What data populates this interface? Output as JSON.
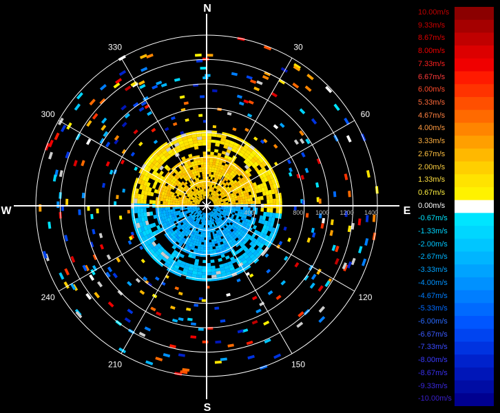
{
  "chart_data": {
    "type": "polar-heatmap",
    "cardinals": {
      "north": "N",
      "east": "E",
      "south": "S",
      "west": "W"
    },
    "azimuth_labels": [
      {
        "deg": 30,
        "text": "30"
      },
      {
        "deg": 60,
        "text": "60"
      },
      {
        "deg": 120,
        "text": "120"
      },
      {
        "deg": 150,
        "text": "150"
      },
      {
        "deg": 210,
        "text": "210"
      },
      {
        "deg": 240,
        "text": "240"
      },
      {
        "deg": 300,
        "text": "300"
      },
      {
        "deg": 330,
        "text": "330"
      }
    ],
    "range_rings": [
      200,
      400,
      600,
      800,
      1000,
      1200,
      1400
    ],
    "range_labels": [
      {
        "range": 400,
        "text": "400"
      },
      {
        "range": 800,
        "text": "800"
      },
      {
        "range": 1000,
        "text": "1000"
      },
      {
        "range": 1200,
        "text": "1200"
      },
      {
        "range": 1400,
        "text": "1400"
      }
    ],
    "max_range": 1400,
    "colorbar": {
      "labels": [
        "10.00m/s",
        "9.33m/s",
        "8.67m/s",
        "8.00m/s",
        "7.33m/s",
        "6.67m/s",
        "6.00m/s",
        "5.33m/s",
        "4.67m/s",
        "4.00m/s",
        "3.33m/s",
        "2.67m/s",
        "2.00m/s",
        "1.33m/s",
        "0.67m/s",
        "0.00m/s",
        "-0.67m/s",
        "-1.33m/s",
        "-2.00m/s",
        "-2.67m/s",
        "-3.33m/s",
        "-4.00m/s",
        "-4.67m/s",
        "-5.33m/s",
        "-6.00m/s",
        "-6.67m/s",
        "-7.33m/s",
        "-8.00m/s",
        "-8.67m/s",
        "-9.33m/s",
        "-10.00m/s"
      ],
      "colors": [
        "#8b0000",
        "#a50000",
        "#c00000",
        "#dc0000",
        "#f00000",
        "#ff1a00",
        "#ff3300",
        "#ff4f00",
        "#ff6a00",
        "#ff8500",
        "#ff9f00",
        "#ffb800",
        "#ffcf00",
        "#ffe300",
        "#fff200",
        "#ffffff",
        "#00e5ff",
        "#00d6ff",
        "#00c6ff",
        "#00b5ff",
        "#00a3ff",
        "#0091ff",
        "#007eff",
        "#006aff",
        "#0056ff",
        "#0044f0",
        "#0033e0",
        "#0022cc",
        "#0016b8",
        "#000ca4",
        "#000090"
      ],
      "label_colors": [
        "#c00000",
        "#d00000",
        "#e00000",
        "#f00000",
        "#ff2020",
        "#ff3a3a",
        "#ff4a2a",
        "#ff6a3a",
        "#ff8040",
        "#ff9a40",
        "#ffb040",
        "#ffc040",
        "#ffd040",
        "#ffe040",
        "#fff040",
        "#ffffff",
        "#00e5ff",
        "#00d6ff",
        "#00c6ff",
        "#00b5ff",
        "#00a3ff",
        "#0091ff",
        "#007eff",
        "#006aff",
        "#2a6aff",
        "#3a5aff",
        "#3a4aff",
        "#3a3aff",
        "#3a30ee",
        "#3a28dd",
        "#3a20cc"
      ]
    },
    "gates": {
      "near": {
        "range": [
          60,
          420
        ],
        "velocity_north": 2.0,
        "velocity_south": -3.0
      },
      "ring1": {
        "range": [
          420,
          620
        ],
        "velocity_north": 1.33,
        "velocity_south": -2.0
      },
      "outer_scatter": {
        "range": [
          620,
          1400
        ]
      }
    }
  }
}
